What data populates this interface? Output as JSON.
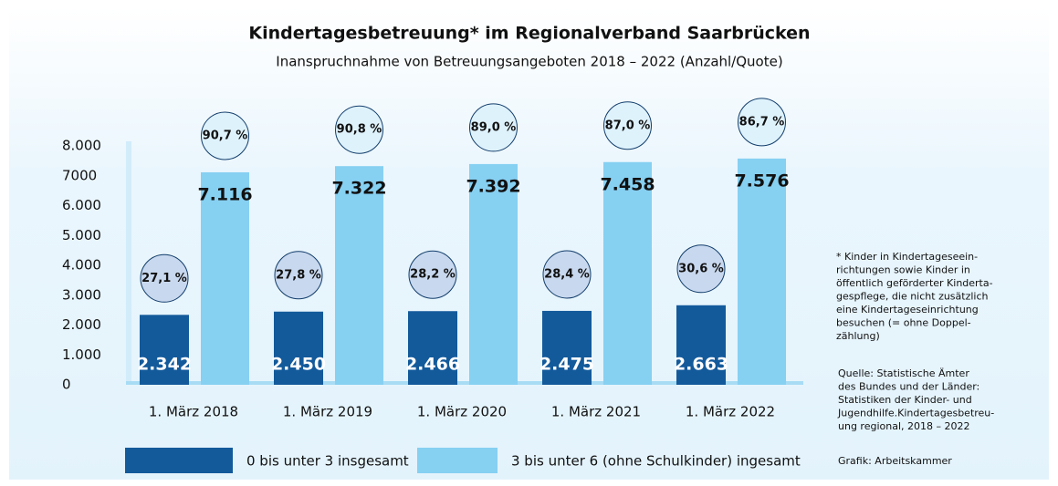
{
  "chart_data": {
    "type": "bar",
    "title": "Kindertagesbetreuung* im Regionalverband Saarbrücken",
    "subtitle": "Inanspruchnahme von Betreuungsangeboten 2018 – 2022 (Anzahl/Quote)",
    "categories": [
      "1. März 2018",
      "1. März 2019",
      "1. März 2020",
      "1. März 2021",
      "1. März 2022"
    ],
    "series": [
      {
        "name": "0 bis unter 3 insgesamt",
        "color": "#135a9b",
        "values": [
          2342,
          2450,
          2466,
          2475,
          2663
        ],
        "value_labels": [
          "2.342",
          "2.450",
          "2.466",
          "2.475",
          "2.663"
        ],
        "quotes": {
          "values": [
            27.1,
            27.8,
            28.2,
            28.4,
            30.6
          ],
          "value_labels": [
            "27,1 %",
            "27,8 %",
            "28,2 %",
            "28,4 %",
            "30,6 %"
          ]
        }
      },
      {
        "name": "3 bis unter 6 (ohne Schulkinder) ingesamt",
        "color": "#86d0f2",
        "values": [
          7116,
          7322,
          7392,
          7458,
          7576
        ],
        "value_labels": [
          "7.116",
          "7.322",
          "7.392",
          "7.458",
          "7.576"
        ],
        "quotes": {
          "values": [
            90.7,
            90.8,
            89.0,
            87.0,
            86.7
          ],
          "value_labels": [
            "90,7 %",
            "90,8 %",
            "89,0 %",
            "87,0 %",
            "86,7 %"
          ]
        }
      }
    ],
    "ylim": [
      0,
      8000
    ],
    "yticks": [
      0,
      {
        "value": 1000,
        "label": "1.000"
      },
      {
        "value": 2000,
        "label": "2.000"
      },
      {
        "value": 3000,
        "label": "3.000"
      },
      {
        "value": 4000,
        "label": "4.000"
      },
      {
        "value": 5000,
        "label": "5.000"
      },
      {
        "value": 6000,
        "label": "6.000"
      },
      {
        "value": 7000,
        "label": "7000"
      },
      {
        "value": 8000,
        "label": "8.000"
      }
    ],
    "footnote": [
      "* Kinder in Kindertageseein-",
      "richtungen sowie Kinder in",
      "öffentlich geförderter Kinderta-",
      "gespflege, die nicht zusätzlich",
      "eine Kindertageseinrichtung",
      "besuchen (= ohne Doppel-",
      "zählung)"
    ],
    "source": [
      "Quelle: Statistische Ämter",
      "des Bundes und der Länder:",
      "Statistiken der Kinder- und",
      "Jugendhilfe.Kindertagesbetreu-",
      "ung regional, 2018 – 2022"
    ],
    "credit": "Grafik: Arbeitskammer"
  }
}
